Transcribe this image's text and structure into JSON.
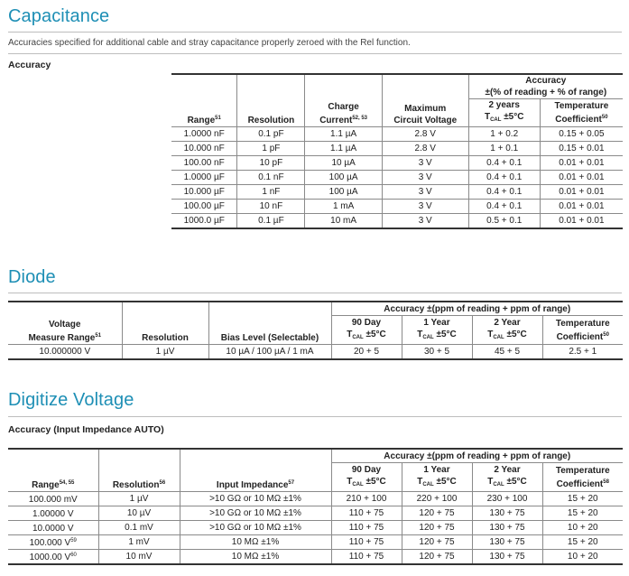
{
  "capacitance": {
    "title": "Capacitance",
    "note": "Accuracies specified for additional cable and stray capacitance properly zeroed with the Rel function.",
    "subtitle": "Accuracy",
    "accuracy_group": "Accuracy",
    "accuracy_group2": "±(% of reading + % of range)",
    "headers": {
      "range": "Range",
      "range_ref": "51",
      "resolution": "Resolution",
      "charge1": "Charge",
      "charge2": "Current",
      "charge_ref": "52, 53",
      "voltage1": "Maximum",
      "voltage2": "Circuit Voltage",
      "years1": "2 years",
      "years2_pre": "T",
      "years2_sub": "CAL",
      "years2_post": "±5°C",
      "temp1": "Temperature",
      "temp2": "Coefficient",
      "temp_ref": "50"
    },
    "rows": [
      [
        "1.0000 nF",
        "0.1 pF",
        "1.1 µA",
        "2.8 V",
        "1 + 0.2",
        "0.15 + 0.05"
      ],
      [
        "10.000 nF",
        "1 pF",
        "1.1 µA",
        "2.8 V",
        "1 + 0.1",
        "0.15 + 0.01"
      ],
      [
        "100.00 nF",
        "10 pF",
        "10 µA",
        "3 V",
        "0.4 + 0.1",
        "0.01 + 0.01"
      ],
      [
        "1.0000 µF",
        "0.1 nF",
        "100 µA",
        "3 V",
        "0.4 + 0.1",
        "0.01 + 0.01"
      ],
      [
        "10.000 µF",
        "1 nF",
        "100 µA",
        "3 V",
        "0.4 + 0.1",
        "0.01 + 0.01"
      ],
      [
        "100.00 µF",
        "10 nF",
        "1 mA",
        "3 V",
        "0.4 + 0.1",
        "0.01 + 0.01"
      ],
      [
        "1000.0 µF",
        "0.1 µF",
        "10 mA",
        "3 V",
        "0.5 + 0.1",
        "0.01 + 0.01"
      ]
    ]
  },
  "diode": {
    "title": "Diode",
    "accuracy_group": "Accuracy ±(ppm of reading + ppm of range)",
    "headers": {
      "voltage1": "Voltage",
      "voltage2": "Measure Range",
      "voltage_ref": "51",
      "resolution": "Resolution",
      "bias": "Bias Level (Selectable)",
      "d90a": "90 Day",
      "y1a": "1 Year",
      "y2a": "2 Year",
      "t_pre": "T",
      "t_sub": "CAL",
      "t_post": "±5°C",
      "temp1": "Temperature",
      "temp2": "Coefficient",
      "temp_ref": "50"
    },
    "row": [
      "10.000000 V",
      "1 µV",
      "10 µA / 100 µA / 1 mA",
      "20 + 5",
      "30 + 5",
      "45 + 5",
      "2.5 + 1"
    ]
  },
  "digitize": {
    "title": "Digitize Voltage",
    "subtitle": "Accuracy (Input Impedance AUTO)",
    "accuracy_group": "Accuracy ±(ppm of reading + ppm of range)",
    "headers": {
      "range": "Range",
      "range_ref": "54, 55",
      "resolution": "Resolution",
      "resolution_ref": "56",
      "impedance": "Input Impedance",
      "impedance_ref": "57",
      "d90a": "90 Day",
      "y1a": "1 Year",
      "y2a": "2 Year",
      "t_pre": "T",
      "t_sub": "CAL",
      "t_post": "±5°C",
      "temp1": "Temperature",
      "temp2": "Coefficient",
      "temp_ref": "58"
    },
    "rows": [
      [
        "100.000 mV",
        "",
        "1 µV",
        ">10 GΩ or 10 MΩ ±1%",
        "210 + 100",
        "220 + 100",
        "230 + 100",
        "15 + 20"
      ],
      [
        "1.00000 V",
        "",
        "10 µV",
        ">10 GΩ or 10 MΩ ±1%",
        "110 + 75",
        "120 + 75",
        "130 + 75",
        "15 + 20"
      ],
      [
        "10.0000 V",
        "",
        "0.1 mV",
        ">10 GΩ or 10 MΩ ±1%",
        "110 + 75",
        "120 + 75",
        "130 + 75",
        "10 + 20"
      ],
      [
        "100.000 V",
        "59",
        "1 mV",
        "10 MΩ ±1%",
        "110 + 75",
        "120 + 75",
        "130 + 75",
        "15 + 20"
      ],
      [
        "1000.00 V",
        "60",
        "10 mV",
        "10 MΩ ±1%",
        "110 + 75",
        "120 + 75",
        "130 + 75",
        "10 + 20"
      ]
    ]
  }
}
